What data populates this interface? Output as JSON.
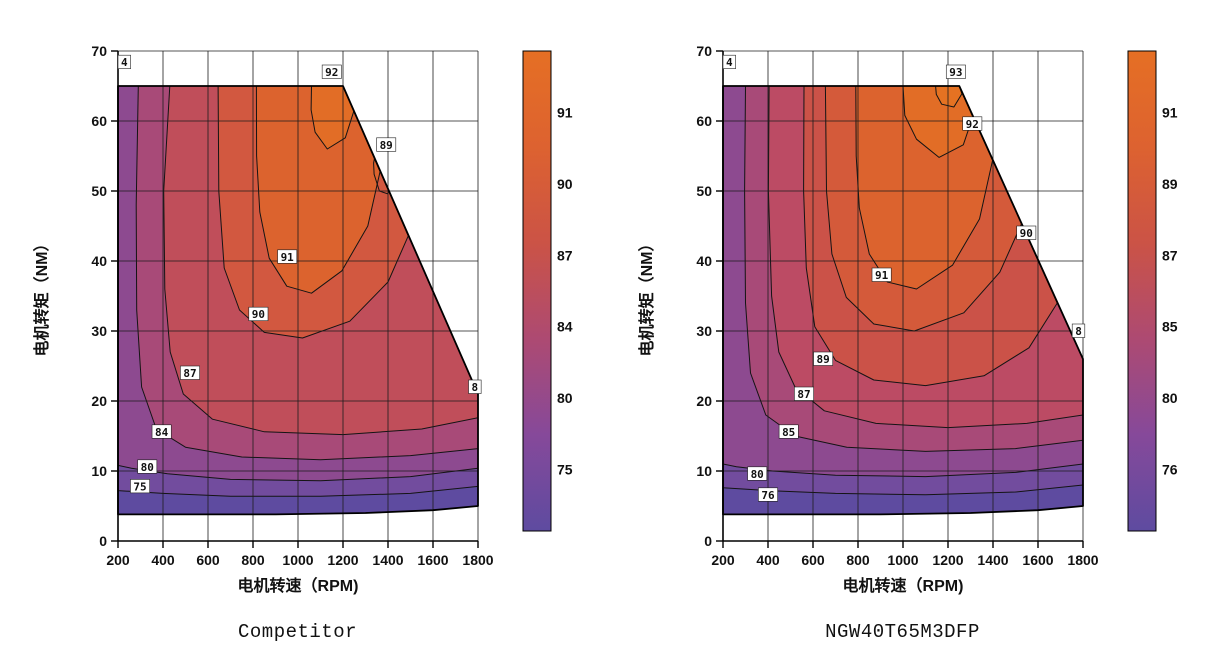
{
  "page": {
    "background": "#ffffff"
  },
  "chart_data": [
    {
      "type": "contour",
      "title": "Competitor",
      "xlabel": "电机转速（RPM)",
      "ylabel": "电机转矩（NM）",
      "xlim": [
        200,
        1800
      ],
      "ylim": [
        0,
        70
      ],
      "x_ticks": [
        200,
        400,
        600,
        800,
        1000,
        1200,
        1400,
        1600,
        1800
      ],
      "y_ticks": [
        0,
        10,
        20,
        30,
        40,
        50,
        60,
        70
      ],
      "contour_levels": [
        75,
        80,
        84,
        87,
        89,
        90,
        91,
        92
      ],
      "colorbar_labels": [
        "91",
        "90",
        "87",
        "84",
        "80",
        "75"
      ],
      "colorbar_gradient": [
        "#e56f24",
        "#dd6230",
        "#cb5346",
        "#ad4a72",
        "#86499a",
        "#5e4ba0"
      ],
      "envelope": [
        [
          200,
          3.8
        ],
        [
          200,
          65
        ],
        [
          1200,
          65
        ],
        [
          1800,
          21
        ],
        [
          1800,
          5
        ],
        [
          1600,
          4.4
        ],
        [
          1300,
          4
        ],
        [
          900,
          3.8
        ],
        [
          500,
          3.8
        ]
      ],
      "bands": [
        {
          "level": "base",
          "color": "#5e4ba0",
          "points": [
            [
              200,
              3.8
            ],
            [
              200,
              65
            ],
            [
              1200,
              65
            ],
            [
              1800,
              21
            ],
            [
              1800,
              5
            ],
            [
              1600,
              4.4
            ],
            [
              1300,
              4
            ],
            [
              900,
              3.8
            ],
            [
              500,
              3.8
            ]
          ]
        },
        {
          "level": "75",
          "color": "#724c9e",
          "points": [
            [
              200,
              7.2
            ],
            [
              200,
              65
            ],
            [
              1200,
              65
            ],
            [
              1800,
              21
            ],
            [
              1800,
              7.8
            ],
            [
              1500,
              6.8
            ],
            [
              1100,
              6.4
            ],
            [
              700,
              6.4
            ],
            [
              400,
              6.8
            ]
          ]
        },
        {
          "level": "80",
          "color": "#8d4a90",
          "points": [
            [
              200,
              10.8
            ],
            [
              200,
              65
            ],
            [
              1200,
              65
            ],
            [
              1800,
              21
            ],
            [
              1800,
              10.4
            ],
            [
              1500,
              9.2
            ],
            [
              1100,
              8.6
            ],
            [
              700,
              8.8
            ],
            [
              420,
              9.6
            ],
            [
              260,
              10.4
            ]
          ]
        },
        {
          "level": "84",
          "color": "#a84a78",
          "points": [
            [
              290,
              65
            ],
            [
              1200,
              65
            ],
            [
              1800,
              21
            ],
            [
              1800,
              13.2
            ],
            [
              1500,
              12.2
            ],
            [
              1100,
              11.6
            ],
            [
              750,
              12
            ],
            [
              500,
              13.4
            ],
            [
              370,
              16
            ],
            [
              305,
              22
            ],
            [
              283,
              33
            ],
            [
              281,
              48
            ]
          ]
        },
        {
          "level": "87",
          "color": "#c04e5a",
          "points": [
            [
              430,
              65
            ],
            [
              1200,
              65
            ],
            [
              1800,
              21
            ],
            [
              1800,
              17.6
            ],
            [
              1550,
              16
            ],
            [
              1200,
              15.2
            ],
            [
              850,
              15.6
            ],
            [
              620,
              17.4
            ],
            [
              490,
              21
            ],
            [
              432,
              27
            ],
            [
              408,
              36
            ],
            [
              403,
              50
            ]
          ]
        },
        {
          "level": "90",
          "color": "#d25840",
          "points": [
            [
              645,
              65
            ],
            [
              1200,
              65
            ],
            [
              1490,
              43.6
            ],
            [
              1400,
              37
            ],
            [
              1230,
              31.4
            ],
            [
              1020,
              29
            ],
            [
              850,
              29.8
            ],
            [
              740,
              33
            ],
            [
              672,
              39
            ],
            [
              648,
              50
            ]
          ]
        },
        {
          "level": "91",
          "color": "#dc632e",
          "points": [
            [
              815,
              65
            ],
            [
              1200,
              65
            ],
            [
              1365,
              52.8
            ],
            [
              1310,
              45
            ],
            [
              1195,
              38.6
            ],
            [
              1060,
              35.4
            ],
            [
              950,
              36.4
            ],
            [
              872,
              40.4
            ],
            [
              830,
              47
            ],
            [
              816,
              55
            ]
          ]
        },
        {
          "level": "92",
          "color": "#e26d26",
          "points": [
            [
              1060,
              65
            ],
            [
              1200,
              65
            ],
            [
              1248,
              61.4
            ],
            [
              1210,
              57.6
            ],
            [
              1130,
              56
            ],
            [
              1076,
              58.4
            ],
            [
              1058,
              61.6
            ]
          ]
        }
      ],
      "islands": [
        {
          "level": "89",
          "points": [
            [
              1338,
              52.4
            ],
            [
              1362,
              50
            ],
            [
              1398,
              49.6
            ],
            [
              1426,
              51.4
            ],
            [
              1432,
              54
            ],
            [
              1414,
              56.6
            ],
            [
              1378,
              57.6
            ],
            [
              1348,
              56
            ],
            [
              1336,
              54
            ]
          ]
        }
      ],
      "labels": [
        {
          "text": "4",
          "x": 228,
          "y": 68.4
        },
        {
          "text": "92",
          "x": 1150,
          "y": 67
        },
        {
          "text": "89",
          "x": 1392,
          "y": 56.6
        },
        {
          "text": "91",
          "x": 952,
          "y": 40.6
        },
        {
          "text": "90",
          "x": 824,
          "y": 32.4
        },
        {
          "text": "87",
          "x": 520,
          "y": 24
        },
        {
          "text": "84",
          "x": 394,
          "y": 15.6
        },
        {
          "text": "80",
          "x": 330,
          "y": 10.6
        },
        {
          "text": "75",
          "x": 298,
          "y": 7.8
        },
        {
          "text": "8",
          "x": 1786,
          "y": 22
        }
      ]
    },
    {
      "type": "contour",
      "title": "NGW40T65M3DFP",
      "xlabel": "电机转速（RPM)",
      "ylabel": "电机转矩（NM）",
      "xlim": [
        200,
        1800
      ],
      "ylim": [
        0,
        70
      ],
      "x_ticks": [
        200,
        400,
        600,
        800,
        1000,
        1200,
        1400,
        1600,
        1800
      ],
      "y_ticks": [
        0,
        10,
        20,
        30,
        40,
        50,
        60,
        70
      ],
      "contour_levels": [
        76,
        80,
        85,
        87,
        89,
        90,
        91,
        92,
        93
      ],
      "colorbar_labels": [
        "91",
        "89",
        "87",
        "85",
        "80",
        "76"
      ],
      "colorbar_gradient": [
        "#e56f24",
        "#dd6230",
        "#cb5346",
        "#ad4a72",
        "#86499a",
        "#5e4ba0"
      ],
      "envelope": [
        [
          200,
          3.8
        ],
        [
          200,
          65
        ],
        [
          1250,
          65
        ],
        [
          1800,
          26
        ],
        [
          1800,
          5
        ],
        [
          1600,
          4.4
        ],
        [
          1300,
          4
        ],
        [
          900,
          3.8
        ],
        [
          500,
          3.8
        ]
      ],
      "bands": [
        {
          "level": "base",
          "color": "#5e4ba0",
          "points": [
            [
              200,
              3.8
            ],
            [
              200,
              65
            ],
            [
              1250,
              65
            ],
            [
              1800,
              26
            ],
            [
              1800,
              5
            ],
            [
              1600,
              4.4
            ],
            [
              1300,
              4
            ],
            [
              900,
              3.8
            ],
            [
              500,
              3.8
            ]
          ]
        },
        {
          "level": "76",
          "color": "#724c9e",
          "points": [
            [
              200,
              7.6
            ],
            [
              200,
              65
            ],
            [
              1250,
              65
            ],
            [
              1800,
              26
            ],
            [
              1800,
              8
            ],
            [
              1500,
              7
            ],
            [
              1100,
              6.6
            ],
            [
              700,
              6.8
            ],
            [
              400,
              7.2
            ]
          ]
        },
        {
          "level": "80",
          "color": "#8d4a90",
          "points": [
            [
              200,
              11
            ],
            [
              200,
              65
            ],
            [
              1250,
              65
            ],
            [
              1800,
              26
            ],
            [
              1800,
              11
            ],
            [
              1500,
              9.8
            ],
            [
              1100,
              9.2
            ],
            [
              700,
              9.4
            ],
            [
              420,
              10
            ],
            [
              260,
              10.6
            ]
          ]
        },
        {
          "level": "85",
          "color": "#a84a78",
          "points": [
            [
              300,
              65
            ],
            [
              1250,
              65
            ],
            [
              1800,
              26
            ],
            [
              1800,
              14.4
            ],
            [
              1500,
              13.2
            ],
            [
              1100,
              12.8
            ],
            [
              750,
              13.4
            ],
            [
              520,
              15
            ],
            [
              390,
              18
            ],
            [
              322,
              24
            ],
            [
              300,
              34
            ],
            [
              296,
              50
            ]
          ]
        },
        {
          "level": "87",
          "color": "#bc4b64",
          "points": [
            [
              405,
              65
            ],
            [
              1250,
              65
            ],
            [
              1800,
              26
            ],
            [
              1800,
              18
            ],
            [
              1550,
              16.8
            ],
            [
              1200,
              16.2
            ],
            [
              880,
              16.8
            ],
            [
              650,
              18.6
            ],
            [
              520,
              22
            ],
            [
              448,
              27
            ],
            [
              416,
              35
            ],
            [
              402,
              50
            ]
          ]
        },
        {
          "level": "89",
          "color": "#cb5248",
          "points": [
            [
              560,
              65
            ],
            [
              1250,
              65
            ],
            [
              1686,
              34
            ],
            [
              1560,
              27.6
            ],
            [
              1360,
              23.6
            ],
            [
              1100,
              22.2
            ],
            [
              870,
              23
            ],
            [
              700,
              25.8
            ],
            [
              608,
              30.6
            ],
            [
              570,
              39
            ],
            [
              558,
              50
            ]
          ]
        },
        {
          "level": "90",
          "color": "#d45a3a",
          "points": [
            [
              655,
              65
            ],
            [
              1250,
              65
            ],
            [
              1528,
              45.4
            ],
            [
              1430,
              38.4
            ],
            [
              1270,
              32.6
            ],
            [
              1050,
              30
            ],
            [
              870,
              31
            ],
            [
              748,
              34.8
            ],
            [
              684,
              41
            ],
            [
              660,
              50
            ]
          ]
        },
        {
          "level": "91",
          "color": "#dc632e",
          "points": [
            [
              790,
              65
            ],
            [
              1250,
              65
            ],
            [
              1398,
              54.4
            ],
            [
              1340,
              46
            ],
            [
              1220,
              39.4
            ],
            [
              1060,
              36
            ],
            [
              930,
              37
            ],
            [
              850,
              41
            ],
            [
              806,
              47.6
            ],
            [
              792,
              55
            ]
          ]
        },
        {
          "level": "92",
          "color": "#e26d26",
          "points": [
            [
              1000,
              65
            ],
            [
              1250,
              65
            ],
            [
              1310,
              60.6
            ],
            [
              1268,
              56.6
            ],
            [
              1160,
              54.8
            ],
            [
              1060,
              57.4
            ],
            [
              1008,
              60.8
            ]
          ]
        },
        {
          "level": "93",
          "color": "#e57222",
          "points": [
            [
              1145,
              65
            ],
            [
              1250,
              65
            ],
            [
              1262,
              63.9
            ],
            [
              1226,
              62
            ],
            [
              1172,
              62.4
            ],
            [
              1148,
              63.8
            ]
          ]
        }
      ],
      "islands": [],
      "labels": [
        {
          "text": "4",
          "x": 228,
          "y": 68.4
        },
        {
          "text": "93",
          "x": 1235,
          "y": 67
        },
        {
          "text": "92",
          "x": 1308,
          "y": 59.6
        },
        {
          "text": "90",
          "x": 1548,
          "y": 44
        },
        {
          "text": "91",
          "x": 905,
          "y": 38
        },
        {
          "text": "89",
          "x": 645,
          "y": 26
        },
        {
          "text": "87",
          "x": 560,
          "y": 21
        },
        {
          "text": "85",
          "x": 492,
          "y": 15.6
        },
        {
          "text": "80",
          "x": 352,
          "y": 9.6
        },
        {
          "text": "76",
          "x": 400,
          "y": 6.6
        },
        {
          "text": "8",
          "x": 1780,
          "y": 30
        }
      ]
    }
  ]
}
